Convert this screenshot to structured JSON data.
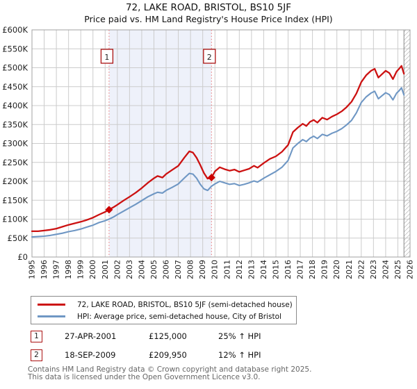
{
  "title": "72, LAKE ROAD, BRISTOL, BS10 5JF",
  "subtitle": "Price paid vs. HM Land Registry's House Price Index (HPI)",
  "chart_data": {
    "type": "line",
    "x_range": [
      1995,
      2026
    ],
    "y_range": [
      0,
      600000
    ],
    "y_tick_step": 50000,
    "grid": true,
    "legend_position": "bottom",
    "y_tick_labels": [
      "£0",
      "£50K",
      "£100K",
      "£150K",
      "£200K",
      "£250K",
      "£300K",
      "£350K",
      "£400K",
      "£450K",
      "£500K",
      "£550K",
      "£600K"
    ],
    "x_tick_labels": [
      "1995",
      "1996",
      "1997",
      "1998",
      "1999",
      "2000",
      "2001",
      "2002",
      "2003",
      "2004",
      "2005",
      "2006",
      "2007",
      "2008",
      "2009",
      "2010",
      "2011",
      "2012",
      "2013",
      "2014",
      "2015",
      "2016",
      "2017",
      "2018",
      "2019",
      "2020",
      "2021",
      "2022",
      "2023",
      "2024",
      "2025",
      "2026"
    ],
    "colors": {
      "property_line": "#cc1111",
      "hpi_line": "#6f97c4",
      "sale_marker": "#cc0000",
      "dotted_line": "#e87272",
      "region_fill": "#eef1fa",
      "grid": "#cccccc",
      "border": "#a0a0a0",
      "marker_box_border": "#aa1111",
      "hatch": "#bbbbbb"
    },
    "shaded_region": {
      "from": 2001.32,
      "to": 2009.72
    },
    "hatched_region": {
      "from": 2025.5,
      "to": 2026
    },
    "sales": [
      {
        "label": "1",
        "x": 2001.32,
        "price": 125000
      },
      {
        "label": "2",
        "x": 2009.72,
        "price": 209950
      }
    ],
    "series": [
      {
        "name": "72, LAKE ROAD, BRISTOL, BS10 5JF (semi-detached house)",
        "color": "#cc1111",
        "width": 2.3,
        "points": [
          [
            1995,
            68000
          ],
          [
            1995.5,
            68000
          ],
          [
            1996,
            70000
          ],
          [
            1996.5,
            72000
          ],
          [
            1997,
            75000
          ],
          [
            1997.5,
            80000
          ],
          [
            1998,
            85000
          ],
          [
            1998.5,
            89000
          ],
          [
            1999,
            93000
          ],
          [
            1999.5,
            98000
          ],
          [
            2000,
            104000
          ],
          [
            2000.5,
            112000
          ],
          [
            2001,
            119000
          ],
          [
            2001.32,
            125000
          ],
          [
            2001.7,
            132000
          ],
          [
            2002,
            138000
          ],
          [
            2002.5,
            149000
          ],
          [
            2003,
            159000
          ],
          [
            2003.5,
            170000
          ],
          [
            2004,
            182000
          ],
          [
            2004.5,
            196000
          ],
          [
            2005,
            208000
          ],
          [
            2005.3,
            214000
          ],
          [
            2005.7,
            210000
          ],
          [
            2006,
            219000
          ],
          [
            2006.5,
            230000
          ],
          [
            2007,
            241000
          ],
          [
            2007.5,
            263000
          ],
          [
            2007.9,
            279000
          ],
          [
            2008.2,
            276000
          ],
          [
            2008.5,
            262000
          ],
          [
            2008.8,
            243000
          ],
          [
            2009.1,
            222000
          ],
          [
            2009.4,
            207000
          ],
          [
            2009.72,
            209950
          ],
          [
            2010,
            226000
          ],
          [
            2010.4,
            237000
          ],
          [
            2010.8,
            232000
          ],
          [
            2011.2,
            228000
          ],
          [
            2011.6,
            231000
          ],
          [
            2012,
            225000
          ],
          [
            2012.4,
            229000
          ],
          [
            2012.8,
            233000
          ],
          [
            2013.2,
            241000
          ],
          [
            2013.5,
            236000
          ],
          [
            2014,
            248000
          ],
          [
            2014.5,
            259000
          ],
          [
            2015,
            266000
          ],
          [
            2015.5,
            278000
          ],
          [
            2016,
            296000
          ],
          [
            2016.4,
            330000
          ],
          [
            2016.8,
            342000
          ],
          [
            2017.2,
            352000
          ],
          [
            2017.5,
            346000
          ],
          [
            2017.8,
            357000
          ],
          [
            2018.1,
            362000
          ],
          [
            2018.4,
            355000
          ],
          [
            2018.8,
            368000
          ],
          [
            2019.2,
            363000
          ],
          [
            2019.6,
            371000
          ],
          [
            2020,
            377000
          ],
          [
            2020.4,
            385000
          ],
          [
            2020.8,
            396000
          ],
          [
            2021.2,
            410000
          ],
          [
            2021.6,
            432000
          ],
          [
            2022,
            462000
          ],
          [
            2022.4,
            480000
          ],
          [
            2022.8,
            492000
          ],
          [
            2023.1,
            497000
          ],
          [
            2023.4,
            474000
          ],
          [
            2023.7,
            483000
          ],
          [
            2024,
            492000
          ],
          [
            2024.3,
            486000
          ],
          [
            2024.6,
            470000
          ],
          [
            2024.9,
            490000
          ],
          [
            2025.1,
            497000
          ],
          [
            2025.3,
            505000
          ],
          [
            2025.5,
            484000
          ]
        ]
      },
      {
        "name": "HPI: Average price, semi-detached house, City of Bristol",
        "color": "#6f97c4",
        "width": 2.1,
        "points": [
          [
            1995,
            53000
          ],
          [
            1995.5,
            54000
          ],
          [
            1996,
            55000
          ],
          [
            1996.5,
            57000
          ],
          [
            1997,
            60000
          ],
          [
            1997.5,
            63000
          ],
          [
            1998,
            67000
          ],
          [
            1998.5,
            70000
          ],
          [
            1999,
            74000
          ],
          [
            1999.5,
            79000
          ],
          [
            2000,
            84000
          ],
          [
            2000.5,
            91000
          ],
          [
            2001,
            96000
          ],
          [
            2001.32,
            100000
          ],
          [
            2001.7,
            106000
          ],
          [
            2002,
            112000
          ],
          [
            2002.5,
            121000
          ],
          [
            2003,
            130000
          ],
          [
            2003.5,
            139000
          ],
          [
            2004,
            149000
          ],
          [
            2004.5,
            159000
          ],
          [
            2005,
            167000
          ],
          [
            2005.3,
            171000
          ],
          [
            2005.7,
            169000
          ],
          [
            2006,
            176000
          ],
          [
            2006.5,
            184000
          ],
          [
            2007,
            193000
          ],
          [
            2007.5,
            209000
          ],
          [
            2007.9,
            221000
          ],
          [
            2008.2,
            219000
          ],
          [
            2008.5,
            208000
          ],
          [
            2008.8,
            192000
          ],
          [
            2009.1,
            180000
          ],
          [
            2009.4,
            176000
          ],
          [
            2009.72,
            187000
          ],
          [
            2010,
            193000
          ],
          [
            2010.4,
            200000
          ],
          [
            2010.8,
            196000
          ],
          [
            2011.2,
            192000
          ],
          [
            2011.6,
            194000
          ],
          [
            2012,
            189000
          ],
          [
            2012.4,
            192000
          ],
          [
            2012.8,
            196000
          ],
          [
            2013.2,
            201000
          ],
          [
            2013.5,
            198000
          ],
          [
            2014,
            208000
          ],
          [
            2014.5,
            217000
          ],
          [
            2015,
            226000
          ],
          [
            2015.5,
            237000
          ],
          [
            2016,
            255000
          ],
          [
            2016.4,
            288000
          ],
          [
            2016.8,
            300000
          ],
          [
            2017.2,
            310000
          ],
          [
            2017.5,
            305000
          ],
          [
            2017.8,
            314000
          ],
          [
            2018.1,
            319000
          ],
          [
            2018.4,
            313000
          ],
          [
            2018.8,
            324000
          ],
          [
            2019.2,
            320000
          ],
          [
            2019.6,
            327000
          ],
          [
            2020,
            332000
          ],
          [
            2020.4,
            339000
          ],
          [
            2020.8,
            349000
          ],
          [
            2021.2,
            361000
          ],
          [
            2021.6,
            381000
          ],
          [
            2022,
            408000
          ],
          [
            2022.4,
            423000
          ],
          [
            2022.8,
            433000
          ],
          [
            2023.1,
            438000
          ],
          [
            2023.4,
            418000
          ],
          [
            2023.7,
            426000
          ],
          [
            2024,
            434000
          ],
          [
            2024.3,
            429000
          ],
          [
            2024.6,
            415000
          ],
          [
            2024.9,
            433000
          ],
          [
            2025.1,
            439000
          ],
          [
            2025.3,
            447000
          ],
          [
            2025.5,
            428000
          ]
        ]
      }
    ]
  },
  "annotations": [
    {
      "num": "1",
      "date": "27-APR-2001",
      "price": "£125,000",
      "hpi": "25% ↑ HPI"
    },
    {
      "num": "2",
      "date": "18-SEP-2009",
      "price": "£209,950",
      "hpi": "12% ↑ HPI"
    }
  ],
  "footer": {
    "line1": "Contains HM Land Registry data © Crown copyright and database right 2025.",
    "line2": "This data is licensed under the Open Government Licence v3.0."
  }
}
